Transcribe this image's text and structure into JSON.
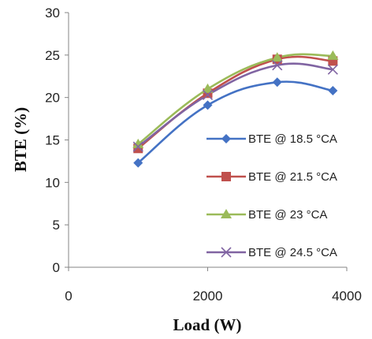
{
  "chart_data": {
    "type": "line",
    "title": "",
    "xlabel": "Load (W)",
    "ylabel": "BTE (%)",
    "xlim": [
      0,
      4000
    ],
    "ylim": [
      0,
      30
    ],
    "xticks": [
      0,
      2000,
      4000
    ],
    "yticks": [
      0,
      5,
      10,
      15,
      20,
      25,
      30
    ],
    "grid": false,
    "legend_position": "right",
    "smooth": true,
    "x": [
      1000,
      2000,
      3000,
      3800
    ],
    "series": [
      {
        "name": "BTE @ 18.5 °CA",
        "values": [
          12.3,
          19.1,
          21.8,
          20.8
        ],
        "color": "#4472C4",
        "marker": "diamond"
      },
      {
        "name": "BTE @ 21.5 °CA",
        "values": [
          14.0,
          20.5,
          24.5,
          24.3
        ],
        "color": "#C0504D",
        "marker": "square"
      },
      {
        "name": "BTE @ 23 °CA",
        "values": [
          14.5,
          21.0,
          24.7,
          24.9
        ],
        "color": "#9BBB59",
        "marker": "triangle"
      },
      {
        "name": "BTE @ 24.5 °CA",
        "values": [
          14.2,
          20.3,
          23.8,
          23.3
        ],
        "color": "#8064A2",
        "marker": "x"
      }
    ]
  }
}
